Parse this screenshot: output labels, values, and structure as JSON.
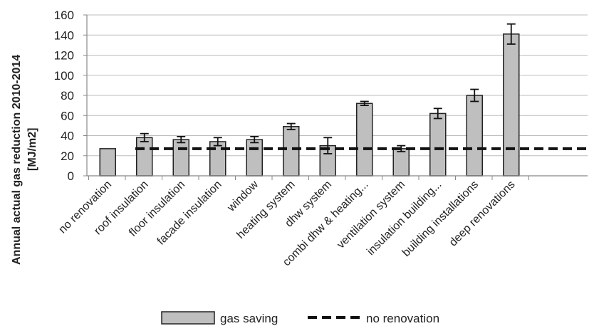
{
  "chart_data": {
    "type": "bar",
    "title": "",
    "xlabel": "",
    "ylabel_lines": [
      "Annual actual gas reduction 2010-2014",
      "[MJ/m2]"
    ],
    "ylim": [
      0,
      160
    ],
    "yticks": [
      0,
      20,
      40,
      60,
      80,
      100,
      120,
      140,
      160
    ],
    "grid": true,
    "legend_position": "bottom",
    "categories": [
      "no renovation",
      "roof insulation",
      "floor insulation",
      "facade insulation",
      "window",
      "heating system",
      "dhw system",
      "combi dhw & heating...",
      "ventilation system",
      "insulation building...",
      "building installations",
      "deep renovations"
    ],
    "series": [
      {
        "name": "gas saving",
        "type": "bar",
        "color": "#bfbfbf",
        "values": [
          27,
          38,
          36,
          34,
          36,
          49,
          30,
          72,
          27,
          62,
          80,
          141
        ],
        "error": [
          0,
          4,
          3,
          4,
          3,
          3,
          8,
          2,
          3,
          5,
          6,
          10
        ]
      },
      {
        "name": "no renovation",
        "type": "reference-line",
        "color": "#111111",
        "value": 27
      }
    ],
    "colors": {
      "bar_fill": "#bfbfbf",
      "bar_stroke": "#222222",
      "grid": "#bdbdbd",
      "axis": "#888888"
    }
  }
}
